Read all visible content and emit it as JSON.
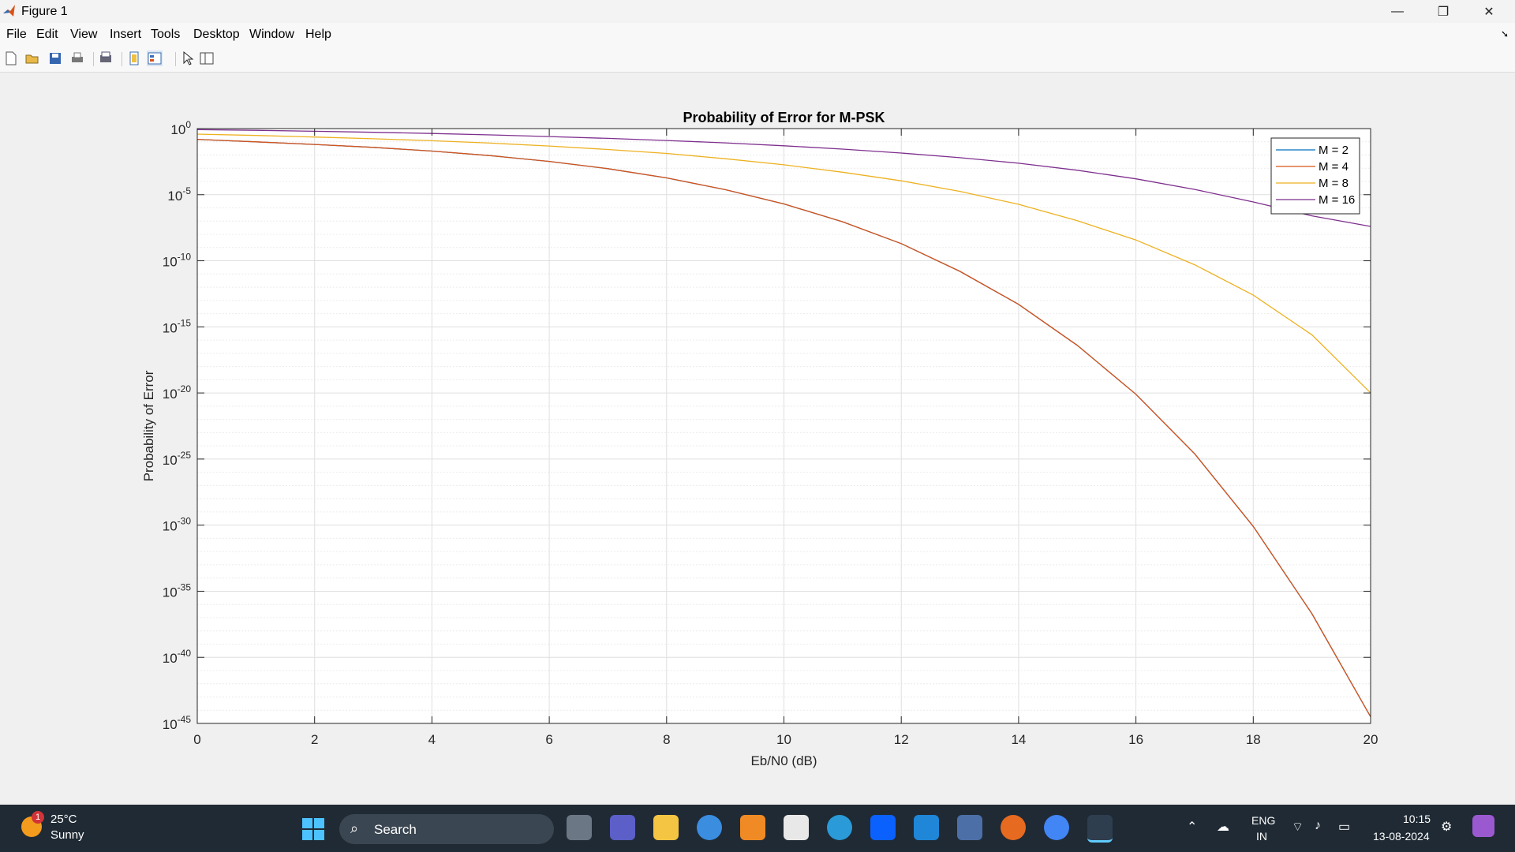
{
  "window": {
    "title": "Figure 1",
    "controls": {
      "minimize": "—",
      "maximize": "❐",
      "close": "✕"
    }
  },
  "menu": [
    "File",
    "Edit",
    "View",
    "Insert",
    "Tools",
    "Desktop",
    "Window",
    "Help"
  ],
  "toolbar_icons": [
    "new-figure-icon",
    "open-file-icon",
    "save-icon",
    "print-icon",
    "print-preview-icon",
    "link-plot-icon",
    "property-editor-icon",
    "select-pointer-icon",
    "plot-browser-icon"
  ],
  "chart_data": {
    "type": "line",
    "title": "Probability of Error for M-PSK",
    "xlabel": "Eb/N0 (dB)",
    "ylabel": "Probability of Error",
    "xlim": [
      0,
      20
    ],
    "ylim_log10": [
      -45,
      0
    ],
    "yscale": "log",
    "grid": true,
    "minor_grid": true,
    "xticks": [
      0,
      2,
      4,
      6,
      8,
      10,
      12,
      14,
      16,
      18,
      20
    ],
    "yticks": [
      {
        "base": "10",
        "exp": "0"
      },
      {
        "base": "10",
        "exp": "-5"
      },
      {
        "base": "10",
        "exp": "-10"
      },
      {
        "base": "10",
        "exp": "-15"
      },
      {
        "base": "10",
        "exp": "-20"
      },
      {
        "base": "10",
        "exp": "-25"
      },
      {
        "base": "10",
        "exp": "-30"
      },
      {
        "base": "10",
        "exp": "-35"
      },
      {
        "base": "10",
        "exp": "-40"
      },
      {
        "base": "10",
        "exp": "-45"
      }
    ],
    "legend_location": "top-right",
    "x": [
      0,
      1,
      2,
      3,
      4,
      5,
      6,
      7,
      8,
      9,
      10,
      11,
      12,
      13,
      14,
      15,
      16,
      17,
      18,
      19,
      20
    ],
    "series": [
      {
        "name": "M = 2",
        "color": "#0072bd",
        "log10_values": [
          -0.82,
          -1.0,
          -1.2,
          -1.42,
          -1.7,
          -2.05,
          -2.48,
          -3.03,
          -3.73,
          -4.62,
          -5.7,
          -7.05,
          -8.7,
          -10.8,
          -13.3,
          -16.4,
          -20.1,
          -24.6,
          -30.1,
          -36.7,
          -44.5
        ]
      },
      {
        "name": "M = 4",
        "color": "#d95319",
        "log10_values": [
          -0.82,
          -1.0,
          -1.2,
          -1.42,
          -1.7,
          -2.05,
          -2.48,
          -3.03,
          -3.73,
          -4.62,
          -5.7,
          -7.05,
          -8.7,
          -10.8,
          -13.3,
          -16.4,
          -20.1,
          -24.6,
          -30.1,
          -36.7,
          -44.5
        ]
      },
      {
        "name": "M = 8",
        "color": "#edb120",
        "log10_values": [
          -0.42,
          -0.52,
          -0.64,
          -0.77,
          -0.92,
          -1.1,
          -1.32,
          -1.58,
          -1.88,
          -2.28,
          -2.74,
          -3.3,
          -3.95,
          -4.75,
          -5.73,
          -6.97,
          -8.43,
          -10.3,
          -12.6,
          -15.6,
          -20.0
        ]
      },
      {
        "name": "M = 16",
        "color": "#7e2f8e",
        "log10_values": [
          -0.08,
          -0.13,
          -0.2,
          -0.28,
          -0.37,
          -0.48,
          -0.6,
          -0.74,
          -0.9,
          -1.08,
          -1.3,
          -1.55,
          -1.85,
          -2.2,
          -2.62,
          -3.15,
          -3.8,
          -4.6,
          -5.55,
          -6.6,
          -7.4
        ]
      }
    ]
  },
  "taskbar": {
    "weather_temp": "25°C",
    "weather_cond": "Sunny",
    "weather_badge": "1",
    "search_label": "Search",
    "lang_line1": "ENG",
    "lang_line2": "IN",
    "time": "10:15",
    "date": "13-08-2024"
  }
}
